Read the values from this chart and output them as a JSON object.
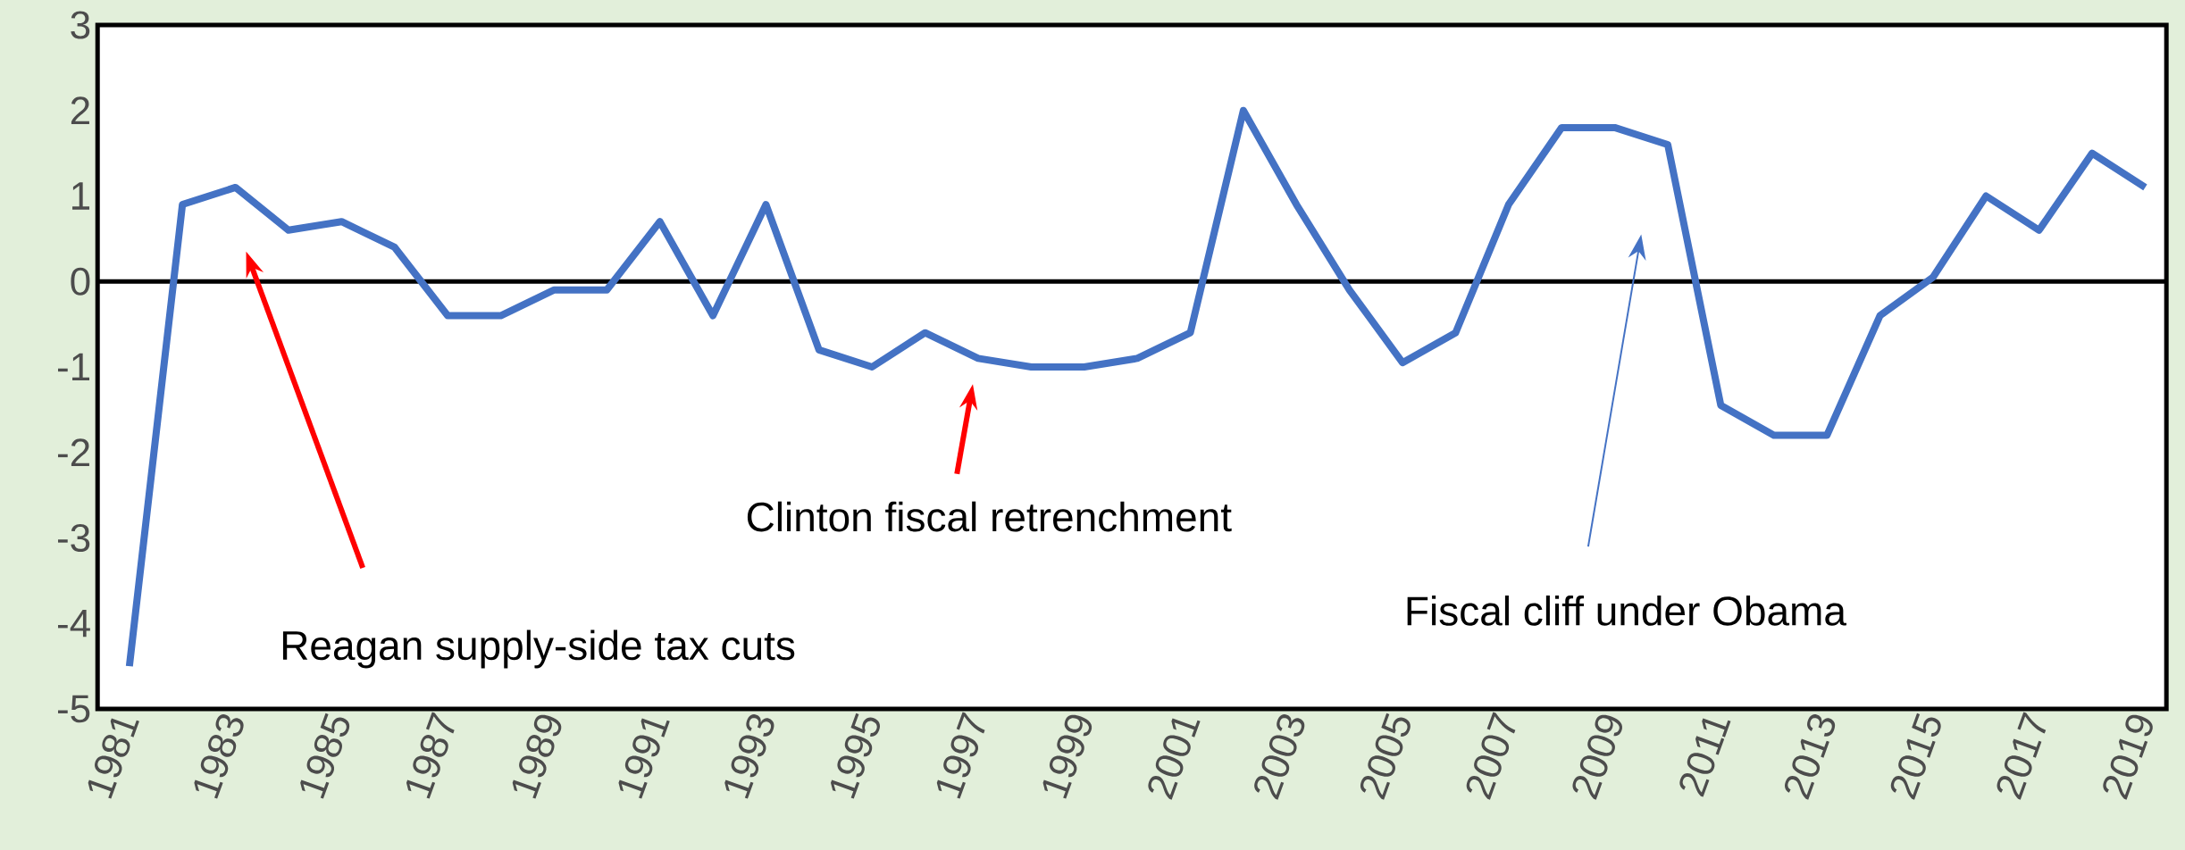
{
  "chart_data": {
    "type": "line",
    "x": [
      1981,
      1982,
      1983,
      1984,
      1985,
      1986,
      1987,
      1988,
      1989,
      1990,
      1991,
      1992,
      1993,
      1994,
      1995,
      1996,
      1997,
      1998,
      1999,
      2000,
      2001,
      2002,
      2003,
      2004,
      2005,
      2006,
      2007,
      2008,
      2009,
      2010,
      2011,
      2012,
      2013,
      2014,
      2015,
      2016,
      2017,
      2018,
      2019
    ],
    "series": [
      {
        "color": "#4472c4",
        "values": [
          -4.5,
          0.9,
          1.1,
          0.6,
          0.7,
          0.4,
          -0.4,
          -0.4,
          -0.1,
          -0.1,
          0.7,
          -0.4,
          0.9,
          -0.8,
          -1.0,
          -0.6,
          -0.9,
          -1.0,
          -1.0,
          -0.9,
          -0.6,
          2.0,
          0.9,
          -0.1,
          -0.95,
          -0.6,
          0.9,
          1.8,
          1.8,
          1.6,
          -1.45,
          -1.8,
          -1.8,
          -0.4,
          0.05,
          1.0,
          0.6,
          1.5,
          1.1
        ]
      }
    ],
    "xlim": [
      1980.4,
      2019.4
    ],
    "ylim": [
      -5,
      3
    ],
    "xticks": [
      1981,
      1983,
      1985,
      1987,
      1989,
      1991,
      1993,
      1995,
      1997,
      1999,
      2001,
      2003,
      2005,
      2007,
      2009,
      2011,
      2013,
      2015,
      2017,
      2019
    ],
    "yticks": [
      -5,
      -4,
      -3,
      -2,
      -1,
      0,
      1,
      2,
      3
    ],
    "grid": false,
    "marker": "none",
    "line_style": "solid",
    "ref_lines": [
      {
        "axis": "y",
        "value": 0,
        "color": "#000000"
      }
    ],
    "annotations": [
      "Reagan supply-side tax cuts",
      "Clinton fiscal retrenchment",
      "Fiscal cliff under Obama"
    ]
  }
}
